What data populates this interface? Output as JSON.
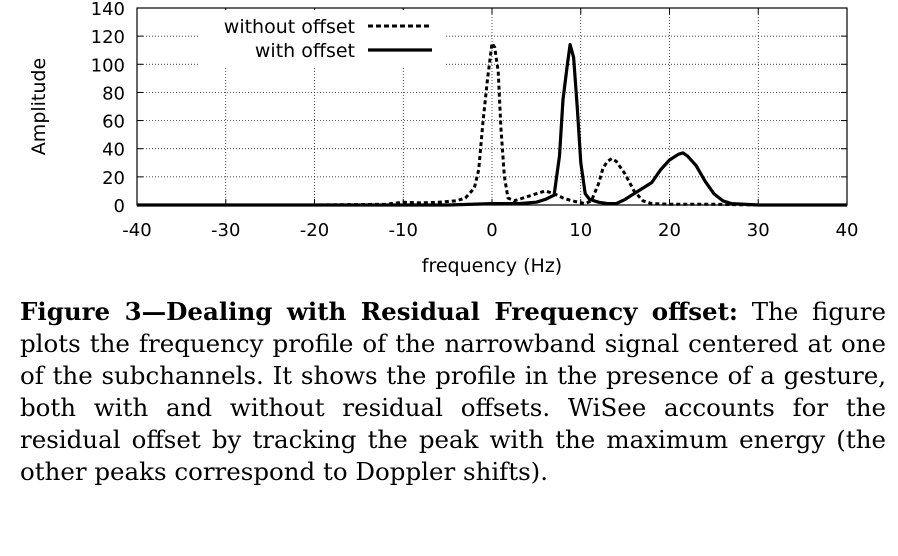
{
  "chart_data": {
    "type": "line",
    "xlabel": "frequency (Hz)",
    "ylabel": "Amplitude",
    "xlim": [
      -40,
      40
    ],
    "ylim": [
      0,
      140
    ],
    "x_ticks": [
      "-40",
      "-30",
      "-20",
      "-10",
      "0",
      "10",
      "20",
      "30",
      "40"
    ],
    "y_ticks": [
      "0",
      "20",
      "40",
      "60",
      "80",
      "100",
      "120",
      "140"
    ],
    "grid": true,
    "legend": "top-left",
    "series": [
      {
        "name": "without offset",
        "style": "dashed",
        "color": "#000000",
        "points": [
          [
            -40,
            0
          ],
          [
            -20,
            0
          ],
          [
            -12,
            0.5
          ],
          [
            -10,
            2
          ],
          [
            -8,
            1.5
          ],
          [
            -6,
            2
          ],
          [
            -4,
            3
          ],
          [
            -3,
            5
          ],
          [
            -2,
            12
          ],
          [
            -1.5,
            25
          ],
          [
            -1,
            60
          ],
          [
            -0.5,
            90
          ],
          [
            0,
            115
          ],
          [
            0.3,
            112
          ],
          [
            0.7,
            95
          ],
          [
            1,
            55
          ],
          [
            1.4,
            20
          ],
          [
            1.8,
            5
          ],
          [
            2.5,
            3
          ],
          [
            3.5,
            5
          ],
          [
            5,
            8
          ],
          [
            6,
            10
          ],
          [
            7,
            8
          ],
          [
            8,
            5
          ],
          [
            9,
            3
          ],
          [
            10.5,
            1
          ],
          [
            11.2,
            3
          ],
          [
            12,
            15
          ],
          [
            12.5,
            26
          ],
          [
            13,
            31
          ],
          [
            13.5,
            33
          ],
          [
            14,
            31
          ],
          [
            15,
            22
          ],
          [
            16,
            10
          ],
          [
            17,
            3
          ],
          [
            18,
            1
          ],
          [
            20,
            0.5
          ],
          [
            25,
            0.5
          ],
          [
            30,
            0
          ],
          [
            40,
            0
          ]
        ]
      },
      {
        "name": "with offset",
        "style": "solid",
        "color": "#000000",
        "points": [
          [
            -40,
            0
          ],
          [
            -10,
            0
          ],
          [
            -5,
            0
          ],
          [
            0,
            1
          ],
          [
            3,
            1
          ],
          [
            5,
            2
          ],
          [
            6,
            4
          ],
          [
            7,
            7
          ],
          [
            7.6,
            35
          ],
          [
            8,
            75
          ],
          [
            8.5,
            100
          ],
          [
            8.8,
            114
          ],
          [
            9.2,
            105
          ],
          [
            9.6,
            70
          ],
          [
            10,
            30
          ],
          [
            10.5,
            8
          ],
          [
            11,
            4
          ],
          [
            12,
            2
          ],
          [
            13,
            1
          ],
          [
            14,
            1
          ],
          [
            15,
            4
          ],
          [
            16,
            8
          ],
          [
            17,
            12
          ],
          [
            18,
            16
          ],
          [
            19,
            25
          ],
          [
            20,
            32
          ],
          [
            21,
            36
          ],
          [
            21.5,
            37
          ],
          [
            22,
            35
          ],
          [
            23,
            28
          ],
          [
            24,
            17
          ],
          [
            25,
            8
          ],
          [
            26,
            3
          ],
          [
            27,
            1
          ],
          [
            30,
            0
          ],
          [
            40,
            0
          ]
        ]
      }
    ]
  },
  "caption": {
    "title": "Figure 3—Dealing with Residual Frequency offset:",
    "body": "The figure plots the frequency profile of the narrowband signal centered at one of the subchannels. It shows the profile in the presence of a gesture, both with and without residual offsets. WiSee accounts for the residual offset by tracking the peak with the maximum energy (the other peaks correspond to Doppler shifts)."
  }
}
